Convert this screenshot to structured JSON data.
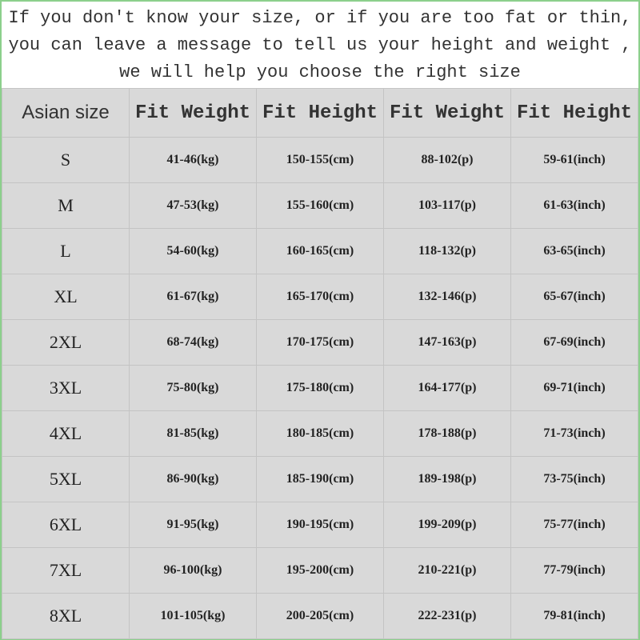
{
  "note": {
    "lines": [
      "If you don't know your size, or if you are too fat or thin,",
      "you can leave a message to tell us your height and weight ,",
      "we will help you choose the right size"
    ]
  },
  "accent_color": "#8ccf8c",
  "table": {
    "headers": [
      "Asian size",
      "Fit Weight",
      "Fit Height",
      "Fit Weight",
      "Fit Height"
    ],
    "rows": [
      [
        "S",
        "41-46(kg)",
        "150-155(cm)",
        "88-102(p)",
        "59-61(inch)"
      ],
      [
        "M",
        "47-53(kg)",
        "155-160(cm)",
        "103-117(p)",
        "61-63(inch)"
      ],
      [
        "L",
        "54-60(kg)",
        "160-165(cm)",
        "118-132(p)",
        "63-65(inch)"
      ],
      [
        "XL",
        "61-67(kg)",
        "165-170(cm)",
        "132-146(p)",
        "65-67(inch)"
      ],
      [
        "2XL",
        "68-74(kg)",
        "170-175(cm)",
        "147-163(p)",
        "67-69(inch)"
      ],
      [
        "3XL",
        "75-80(kg)",
        "175-180(cm)",
        "164-177(p)",
        "69-71(inch)"
      ],
      [
        "4XL",
        "81-85(kg)",
        "180-185(cm)",
        "178-188(p)",
        "71-73(inch)"
      ],
      [
        "5XL",
        "86-90(kg)",
        "185-190(cm)",
        "189-198(p)",
        "73-75(inch)"
      ],
      [
        "6XL",
        "91-95(kg)",
        "190-195(cm)",
        "199-209(p)",
        "75-77(inch)"
      ],
      [
        "7XL",
        "96-100(kg)",
        "195-200(cm)",
        "210-221(p)",
        "77-79(inch)"
      ],
      [
        "8XL",
        "101-105(kg)",
        "200-205(cm)",
        "222-231(p)",
        "79-81(inch)"
      ]
    ]
  }
}
